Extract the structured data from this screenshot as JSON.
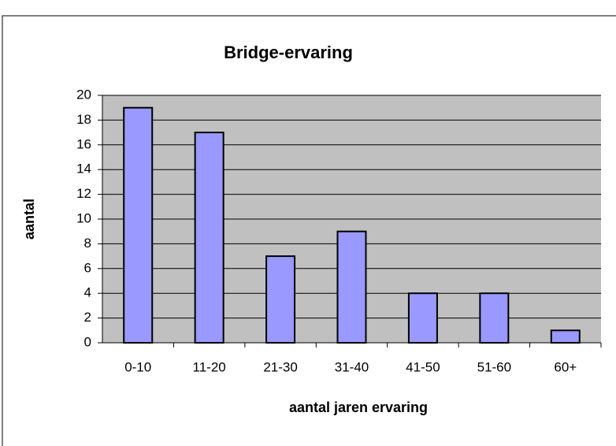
{
  "chart_data": {
    "type": "bar",
    "title": "Bridge-ervaring",
    "x_label": "aantal jaren ervaring",
    "y_label": "aantal",
    "categories": [
      "0-10",
      "11-20",
      "21-30",
      "31-40",
      "41-50",
      "51-60",
      "60+"
    ],
    "values": [
      19,
      17,
      7,
      9,
      4,
      4,
      1
    ],
    "color": "#9999ff",
    "ylim": [
      0,
      20
    ],
    "yticks": [
      0,
      2,
      4,
      6,
      8,
      10,
      12,
      14,
      16,
      18,
      20
    ],
    "grid": true
  }
}
